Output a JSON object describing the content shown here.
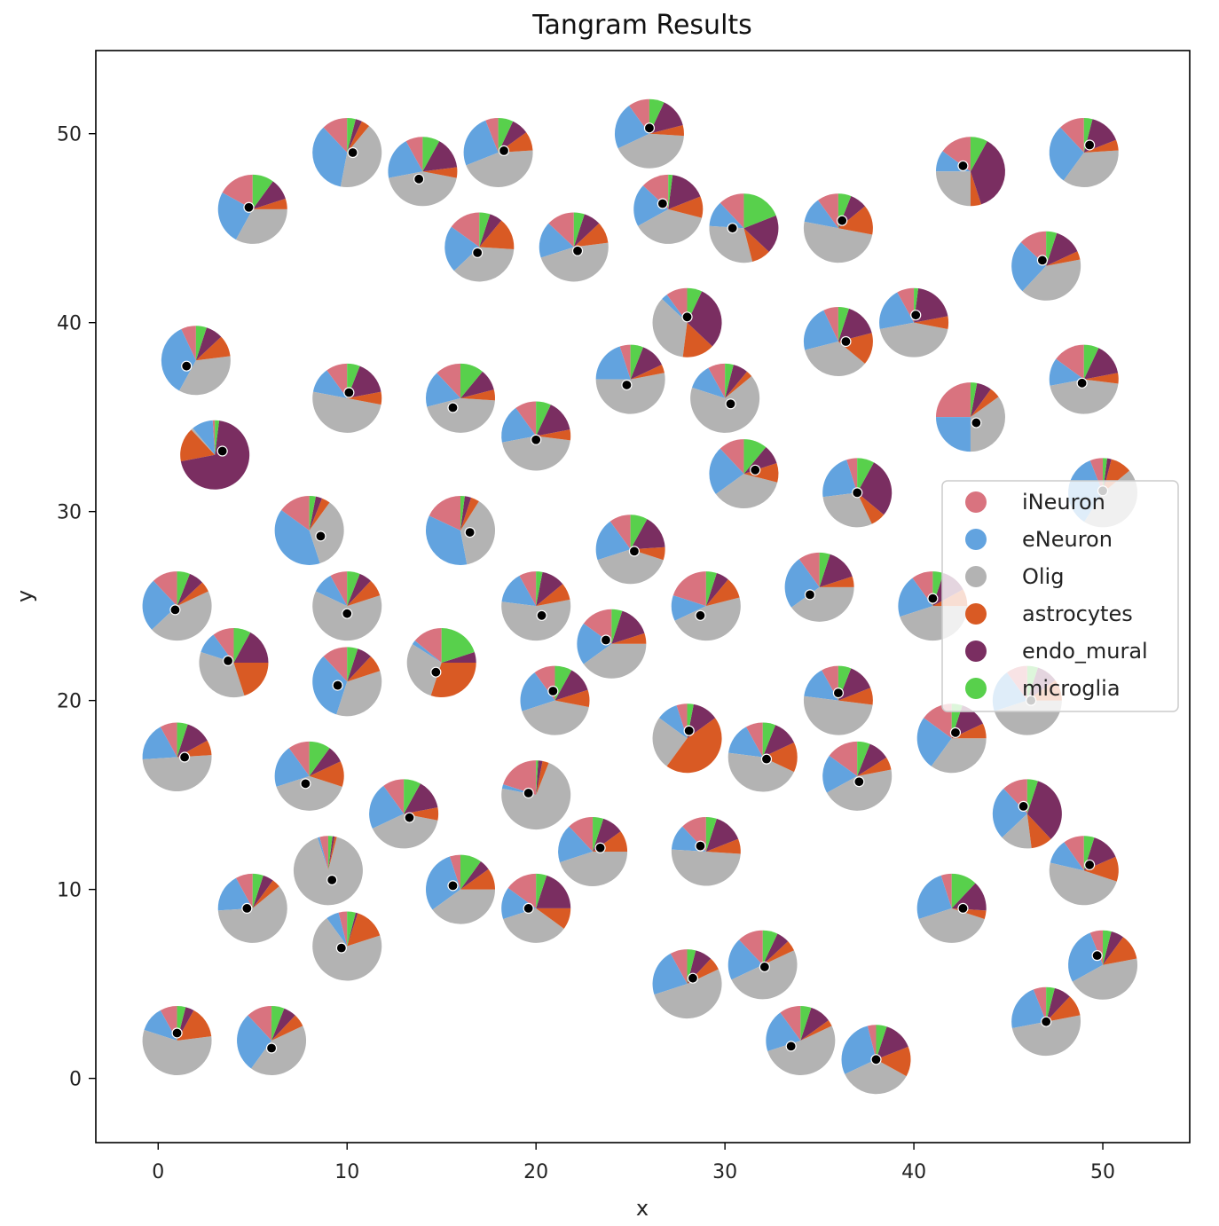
{
  "chart_data": {
    "type": "scatter",
    "title": "Tangram Results",
    "xlabel": "x",
    "ylabel": "y",
    "xlim": [
      -3.3,
      54.6
    ],
    "ylim": [
      -3.4,
      54.4
    ],
    "xticks": [
      0,
      10,
      20,
      30,
      40,
      50
    ],
    "yticks": [
      0,
      10,
      20,
      30,
      40,
      50
    ],
    "grid": false,
    "legend": {
      "location": "right",
      "entries": [
        {
          "name": "iNeuron",
          "color": "#d9737f"
        },
        {
          "name": "eNeuron",
          "color": "#62a3df"
        },
        {
          "name": "Olig",
          "color": "#b3b3b3"
        },
        {
          "name": "astrocytes",
          "color": "#d95a24"
        },
        {
          "name": "endo_mural",
          "color": "#7a2e61"
        },
        {
          "name": "microglia",
          "color": "#58d04c"
        }
      ]
    },
    "cell_types": [
      "iNeuron",
      "eNeuron",
      "Olig",
      "astrocytes",
      "endo_mural",
      "microglia"
    ],
    "points": [
      {
        "x": 5,
        "y": 46,
        "dx": -0.2,
        "dy": 0.1,
        "p": [
          0.17,
          0.25,
          0.33,
          0.05,
          0.1,
          0.1
        ]
      },
      {
        "x": 10,
        "y": 49,
        "dx": 0.3,
        "dy": 0,
        "p": [
          0.12,
          0.35,
          0.42,
          0.04,
          0.03,
          0.04
        ]
      },
      {
        "x": 14,
        "y": 48,
        "dx": -0.2,
        "dy": -0.4,
        "p": [
          0.08,
          0.2,
          0.44,
          0.05,
          0.15,
          0.08
        ]
      },
      {
        "x": 18,
        "y": 49,
        "dx": 0.3,
        "dy": 0.1,
        "p": [
          0.06,
          0.25,
          0.45,
          0.09,
          0.08,
          0.07
        ]
      },
      {
        "x": 26,
        "y": 50,
        "dx": 0,
        "dy": 0.3,
        "p": [
          0.1,
          0.22,
          0.42,
          0.05,
          0.14,
          0.07
        ]
      },
      {
        "x": 43,
        "y": 48,
        "dx": -0.4,
        "dy": 0.3,
        "p": [
          0.15,
          0.1,
          0.25,
          0.05,
          0.37,
          0.08
        ]
      },
      {
        "x": 49,
        "y": 49,
        "dx": 0.3,
        "dy": 0.4,
        "p": [
          0.12,
          0.28,
          0.36,
          0.05,
          0.15,
          0.04
        ]
      },
      {
        "x": 17,
        "y": 44,
        "dx": -0.1,
        "dy": -0.3,
        "p": [
          0.15,
          0.22,
          0.37,
          0.15,
          0.06,
          0.05
        ]
      },
      {
        "x": 22,
        "y": 44,
        "dx": 0.2,
        "dy": -0.2,
        "p": [
          0.13,
          0.17,
          0.47,
          0.1,
          0.08,
          0.05
        ]
      },
      {
        "x": 27,
        "y": 46,
        "dx": -0.3,
        "dy": 0.3,
        "p": [
          0.13,
          0.2,
          0.38,
          0.1,
          0.17,
          0.02
        ]
      },
      {
        "x": 31,
        "y": 45,
        "dx": -0.6,
        "dy": 0,
        "p": [
          0.12,
          0.12,
          0.3,
          0.09,
          0.18,
          0.19
        ]
      },
      {
        "x": 36,
        "y": 45,
        "dx": 0.2,
        "dy": 0.4,
        "p": [
          0.1,
          0.12,
          0.5,
          0.14,
          0.08,
          0.06
        ]
      },
      {
        "x": 47,
        "y": 43,
        "dx": -0.2,
        "dy": 0.3,
        "p": [
          0.13,
          0.25,
          0.4,
          0.04,
          0.13,
          0.05
        ]
      },
      {
        "x": 28,
        "y": 40,
        "dx": 0,
        "dy": 0.3,
        "p": [
          0.1,
          0.03,
          0.35,
          0.15,
          0.3,
          0.07
        ]
      },
      {
        "x": 36,
        "y": 39,
        "dx": 0.4,
        "dy": 0,
        "p": [
          0.07,
          0.22,
          0.35,
          0.15,
          0.16,
          0.05
        ]
      },
      {
        "x": 40,
        "y": 40,
        "dx": 0.1,
        "dy": 0.4,
        "p": [
          0.08,
          0.2,
          0.44,
          0.06,
          0.2,
          0.02
        ]
      },
      {
        "x": 2,
        "y": 38,
        "dx": -0.5,
        "dy": -0.3,
        "p": [
          0.07,
          0.35,
          0.35,
          0.1,
          0.08,
          0.05
        ]
      },
      {
        "x": 10,
        "y": 36,
        "dx": 0.1,
        "dy": 0.3,
        "p": [
          0.1,
          0.12,
          0.5,
          0.06,
          0.16,
          0.06
        ]
      },
      {
        "x": 16,
        "y": 36,
        "dx": -0.4,
        "dy": -0.5,
        "p": [
          0.12,
          0.17,
          0.45,
          0.05,
          0.1,
          0.11
        ]
      },
      {
        "x": 20,
        "y": 34,
        "dx": 0,
        "dy": -0.2,
        "p": [
          0.1,
          0.18,
          0.45,
          0.05,
          0.15,
          0.07
        ]
      },
      {
        "x": 25,
        "y": 37,
        "dx": -0.2,
        "dy": -0.3,
        "p": [
          0.05,
          0.2,
          0.53,
          0.04,
          0.12,
          0.06
        ]
      },
      {
        "x": 30,
        "y": 36,
        "dx": 0.3,
        "dy": -0.3,
        "p": [
          0.08,
          0.12,
          0.66,
          0.03,
          0.07,
          0.04
        ]
      },
      {
        "x": 43,
        "y": 35,
        "dx": 0.3,
        "dy": -0.3,
        "p": [
          0.25,
          0.25,
          0.35,
          0.05,
          0.07,
          0.03
        ]
      },
      {
        "x": 49,
        "y": 37,
        "dx": -0.1,
        "dy": -0.2,
        "p": [
          0.15,
          0.13,
          0.45,
          0.05,
          0.15,
          0.07
        ]
      },
      {
        "x": 3,
        "y": 33,
        "dx": 0.4,
        "dy": 0.2,
        "p": [
          0.01,
          0.1,
          0.01,
          0.16,
          0.7,
          0.02
        ]
      },
      {
        "x": 31,
        "y": 32,
        "dx": 0.6,
        "dy": 0.2,
        "p": [
          0.12,
          0.23,
          0.36,
          0.09,
          0.09,
          0.11
        ]
      },
      {
        "x": 37,
        "y": 31,
        "dx": 0,
        "dy": 0,
        "p": [
          0.05,
          0.22,
          0.3,
          0.07,
          0.28,
          0.08
        ]
      },
      {
        "x": 50,
        "y": 31,
        "dx": 0,
        "dy": 0.1,
        "p": [
          0.06,
          0.35,
          0.45,
          0.1,
          0.02,
          0.02
        ]
      },
      {
        "x": 8,
        "y": 29,
        "dx": 0.6,
        "dy": -0.3,
        "p": [
          0.15,
          0.4,
          0.35,
          0.04,
          0.03,
          0.03
        ]
      },
      {
        "x": 16,
        "y": 29,
        "dx": 0.5,
        "dy": -0.1,
        "p": [
          0.18,
          0.35,
          0.38,
          0.04,
          0.03,
          0.02
        ]
      },
      {
        "x": 25,
        "y": 28,
        "dx": 0.2,
        "dy": -0.1,
        "p": [
          0.1,
          0.2,
          0.4,
          0.06,
          0.16,
          0.08
        ]
      },
      {
        "x": 1,
        "y": 25,
        "dx": -0.1,
        "dy": -0.2,
        "p": [
          0.12,
          0.25,
          0.45,
          0.05,
          0.07,
          0.06
        ]
      },
      {
        "x": 10,
        "y": 25,
        "dx": 0,
        "dy": -0.4,
        "p": [
          0.08,
          0.1,
          0.62,
          0.08,
          0.06,
          0.06
        ]
      },
      {
        "x": 20,
        "y": 25,
        "dx": 0.3,
        "dy": -0.5,
        "p": [
          0.08,
          0.15,
          0.55,
          0.08,
          0.11,
          0.03
        ]
      },
      {
        "x": 29,
        "y": 25,
        "dx": -0.3,
        "dy": -0.5,
        "p": [
          0.2,
          0.12,
          0.47,
          0.1,
          0.06,
          0.05
        ]
      },
      {
        "x": 35,
        "y": 26,
        "dx": -0.5,
        "dy": -0.4,
        "p": [
          0.1,
          0.25,
          0.4,
          0.05,
          0.15,
          0.05
        ]
      },
      {
        "x": 41,
        "y": 25,
        "dx": 0,
        "dy": 0.4,
        "p": [
          0.1,
          0.2,
          0.45,
          0.08,
          0.12,
          0.05
        ]
      },
      {
        "x": 4,
        "y": 22,
        "dx": -0.3,
        "dy": 0.1,
        "p": [
          0.1,
          0.1,
          0.35,
          0.2,
          0.17,
          0.08
        ]
      },
      {
        "x": 10,
        "y": 21,
        "dx": -0.5,
        "dy": -0.2,
        "p": [
          0.12,
          0.33,
          0.35,
          0.08,
          0.07,
          0.05
        ]
      },
      {
        "x": 15,
        "y": 22,
        "dx": -0.3,
        "dy": -0.5,
        "p": [
          0.14,
          0.02,
          0.29,
          0.3,
          0.05,
          0.2
        ]
      },
      {
        "x": 24,
        "y": 23,
        "dx": -0.3,
        "dy": 0.2,
        "p": [
          0.15,
          0.2,
          0.4,
          0.05,
          0.15,
          0.05
        ]
      },
      {
        "x": 21,
        "y": 20,
        "dx": -0.1,
        "dy": 0.5,
        "p": [
          0.1,
          0.2,
          0.42,
          0.08,
          0.12,
          0.08
        ]
      },
      {
        "x": 36,
        "y": 20,
        "dx": 0,
        "dy": 0.4,
        "p": [
          0.08,
          0.15,
          0.5,
          0.08,
          0.13,
          0.06
        ]
      },
      {
        "x": 46,
        "y": 20,
        "dx": 0.2,
        "dy": 0,
        "p": [
          0.1,
          0.2,
          0.45,
          0.1,
          0.1,
          0.05
        ]
      },
      {
        "x": 1,
        "y": 17,
        "dx": 0.4,
        "dy": 0,
        "p": [
          0.08,
          0.18,
          0.5,
          0.07,
          0.12,
          0.05
        ]
      },
      {
        "x": 8,
        "y": 16,
        "dx": -0.2,
        "dy": -0.4,
        "p": [
          0.1,
          0.2,
          0.4,
          0.12,
          0.08,
          0.1
        ]
      },
      {
        "x": 13,
        "y": 14,
        "dx": 0.3,
        "dy": -0.2,
        "p": [
          0.1,
          0.22,
          0.4,
          0.06,
          0.14,
          0.08
        ]
      },
      {
        "x": 20,
        "y": 15,
        "dx": -0.4,
        "dy": 0.1,
        "p": [
          0.2,
          0.02,
          0.72,
          0.03,
          0.02,
          0.01
        ]
      },
      {
        "x": 28,
        "y": 18,
        "dx": 0.1,
        "dy": 0.4,
        "p": [
          0.05,
          0.1,
          0.25,
          0.45,
          0.12,
          0.03
        ]
      },
      {
        "x": 32,
        "y": 17,
        "dx": 0.2,
        "dy": -0.1,
        "p": [
          0.08,
          0.15,
          0.45,
          0.14,
          0.12,
          0.06
        ]
      },
      {
        "x": 37,
        "y": 16,
        "dx": 0.1,
        "dy": -0.3,
        "p": [
          0.15,
          0.18,
          0.45,
          0.06,
          0.1,
          0.06
        ]
      },
      {
        "x": 42,
        "y": 18,
        "dx": 0.2,
        "dy": 0.3,
        "p": [
          0.15,
          0.25,
          0.35,
          0.07,
          0.13,
          0.05
        ]
      },
      {
        "x": 46,
        "y": 14,
        "dx": -0.2,
        "dy": 0.4,
        "p": [
          0.12,
          0.25,
          0.15,
          0.1,
          0.33,
          0.05
        ]
      },
      {
        "x": 23,
        "y": 12,
        "dx": 0.4,
        "dy": 0.2,
        "p": [
          0.12,
          0.18,
          0.45,
          0.1,
          0.1,
          0.05
        ]
      },
      {
        "x": 29,
        "y": 12,
        "dx": -0.3,
        "dy": 0.3,
        "p": [
          0.12,
          0.12,
          0.5,
          0.07,
          0.14,
          0.05
        ]
      },
      {
        "x": 49,
        "y": 11,
        "dx": 0.3,
        "dy": 0.3,
        "p": [
          0.1,
          0.12,
          0.5,
          0.12,
          0.14,
          0.05
        ]
      },
      {
        "x": 9,
        "y": 11,
        "dx": 0.2,
        "dy": -0.5,
        "p": [
          0.04,
          0.01,
          0.91,
          0.01,
          0.01,
          0.02
        ]
      },
      {
        "x": 5,
        "y": 9,
        "dx": -0.3,
        "dy": 0,
        "p": [
          0.08,
          0.18,
          0.6,
          0.04,
          0.05,
          0.05
        ]
      },
      {
        "x": 16,
        "y": 10,
        "dx": -0.4,
        "dy": 0.2,
        "p": [
          0.05,
          0.3,
          0.4,
          0.1,
          0.05,
          0.1
        ]
      },
      {
        "x": 20,
        "y": 9,
        "dx": -0.4,
        "dy": 0,
        "p": [
          0.15,
          0.15,
          0.35,
          0.1,
          0.2,
          0.05
        ]
      },
      {
        "x": 42,
        "y": 9,
        "dx": 0.6,
        "dy": 0,
        "p": [
          0.05,
          0.25,
          0.4,
          0.04,
          0.14,
          0.12
        ]
      },
      {
        "x": 10,
        "y": 7,
        "dx": -0.3,
        "dy": -0.1,
        "p": [
          0.04,
          0.06,
          0.7,
          0.15,
          0.01,
          0.04
        ]
      },
      {
        "x": 28,
        "y": 5,
        "dx": 0.3,
        "dy": 0.3,
        "p": [
          0.08,
          0.22,
          0.52,
          0.06,
          0.08,
          0.04
        ]
      },
      {
        "x": 32,
        "y": 6,
        "dx": 0.1,
        "dy": -0.1,
        "p": [
          0.12,
          0.2,
          0.5,
          0.05,
          0.06,
          0.07
        ]
      },
      {
        "x": 50,
        "y": 6,
        "dx": -0.3,
        "dy": 0.5,
        "p": [
          0.06,
          0.27,
          0.45,
          0.12,
          0.06,
          0.04
        ]
      },
      {
        "x": 1,
        "y": 2,
        "dx": 0,
        "dy": 0.4,
        "p": [
          0.08,
          0.12,
          0.57,
          0.15,
          0.04,
          0.04
        ]
      },
      {
        "x": 6,
        "y": 2,
        "dx": 0,
        "dy": -0.4,
        "p": [
          0.12,
          0.28,
          0.42,
          0.06,
          0.06,
          0.06
        ]
      },
      {
        "x": 34,
        "y": 2,
        "dx": -0.5,
        "dy": -0.3,
        "p": [
          0.1,
          0.2,
          0.52,
          0.03,
          0.1,
          0.05
        ]
      },
      {
        "x": 38,
        "y": 1,
        "dx": 0,
        "dy": 0,
        "p": [
          0.04,
          0.28,
          0.35,
          0.14,
          0.14,
          0.05
        ]
      },
      {
        "x": 47,
        "y": 3,
        "dx": 0,
        "dy": 0,
        "p": [
          0.06,
          0.22,
          0.5,
          0.1,
          0.08,
          0.04
        ]
      }
    ]
  }
}
